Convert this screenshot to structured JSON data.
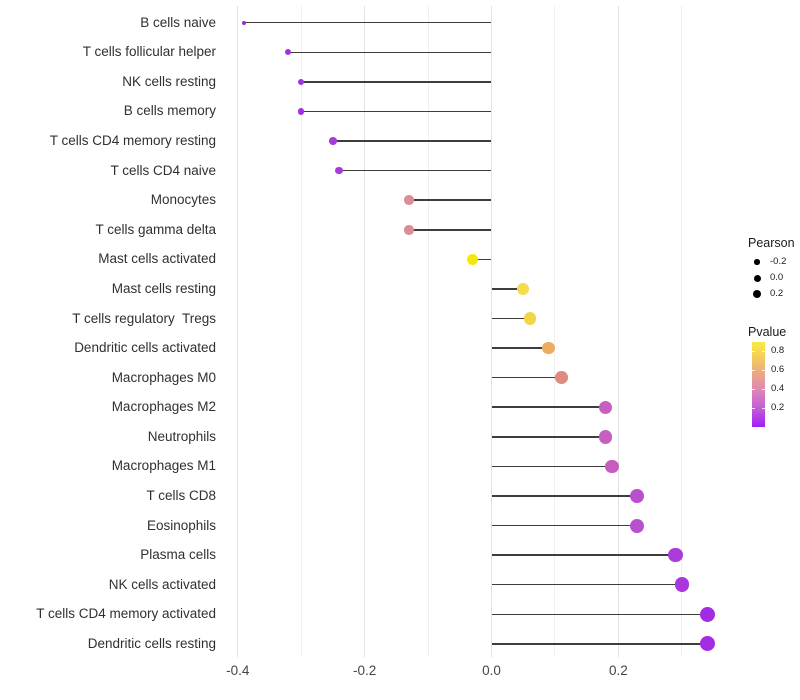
{
  "figure": {
    "background_color": "#ffffff"
  },
  "chart_data": {
    "type": "scatter",
    "variant": "lollipop",
    "orientation": "horizontal",
    "title": "",
    "xlabel": "",
    "ylabel": "",
    "grid": "on",
    "categories": [
      "B cells naive",
      "T cells follicular helper",
      "NK cells resting",
      "B cells memory",
      "T cells CD4 memory resting",
      "T cells CD4 naive",
      "Monocytes",
      "T cells gamma delta",
      "Mast cells activated",
      "Mast cells resting",
      "T cells regulatory  Tregs",
      "Dendritic cells activated",
      "Macrophages M0",
      "Macrophages M2",
      "Neutrophils",
      "Macrophages M1",
      "T cells CD8",
      "Eosinophils",
      "Plasma cells",
      "NK cells activated",
      "T cells CD4 memory activated",
      "Dendritic cells resting"
    ],
    "series": [
      {
        "name": "Pearson",
        "values": [
          -0.39,
          -0.32,
          -0.3,
          -0.3,
          -0.25,
          -0.24,
          -0.13,
          -0.13,
          -0.03,
          0.05,
          0.06,
          0.09,
          0.11,
          0.18,
          0.18,
          0.19,
          0.23,
          0.23,
          0.29,
          0.3,
          0.34,
          0.34
        ]
      }
    ],
    "point_colors": [
      "#9c2bd0",
      "#a133de",
      "#a133de",
      "#a133de",
      "#a93bdc",
      "#a93bdc",
      "#db8c96",
      "#db8c96",
      "#f2e90a",
      "#f5dc4d",
      "#f1d647",
      "#ecac62",
      "#de8b81",
      "#c65fbe",
      "#c65fbe",
      "#c55cbe",
      "#b94fcc",
      "#b94fcc",
      "#ab3bdc",
      "#a936de",
      "#a42be4",
      "#a42be4"
    ],
    "x_tick_labels": [
      "-0.4",
      "-0.2",
      "0.0",
      "0.2"
    ],
    "x_tick_values": [
      -0.4,
      -0.2,
      0.0,
      0.2
    ],
    "x_minor_tick_values": [
      -0.3,
      -0.1,
      0.1,
      0.3
    ],
    "xlim": [
      -0.43,
      0.375
    ],
    "stem_color": "#3d3d3d",
    "legends": {
      "size": {
        "title": "Pearson",
        "labels": [
          "-0.2",
          "0.0",
          "0.2"
        ],
        "values": [
          -0.2,
          0.0,
          0.2
        ],
        "key_color": "#000000",
        "position": "right"
      },
      "color": {
        "title": "Pvalue",
        "tick_labels": [
          "0.8",
          "0.6",
          "0.4",
          "0.2"
        ],
        "tick_values": [
          0.8,
          0.6,
          0.4,
          0.2
        ],
        "range": [
          0,
          0.89
        ],
        "gradient_stops": [
          {
            "color": "#f9e945",
            "pos": 0.0
          },
          {
            "color": "#f7db4e",
            "pos": 0.1
          },
          {
            "color": "#efaf7a",
            "pos": 0.33
          },
          {
            "color": "#df8ab2",
            "pos": 0.55
          },
          {
            "color": "#c45bdb",
            "pos": 0.78
          },
          {
            "color": "#a01ff3",
            "pos": 1.0
          }
        ],
        "position": "right"
      }
    }
  }
}
